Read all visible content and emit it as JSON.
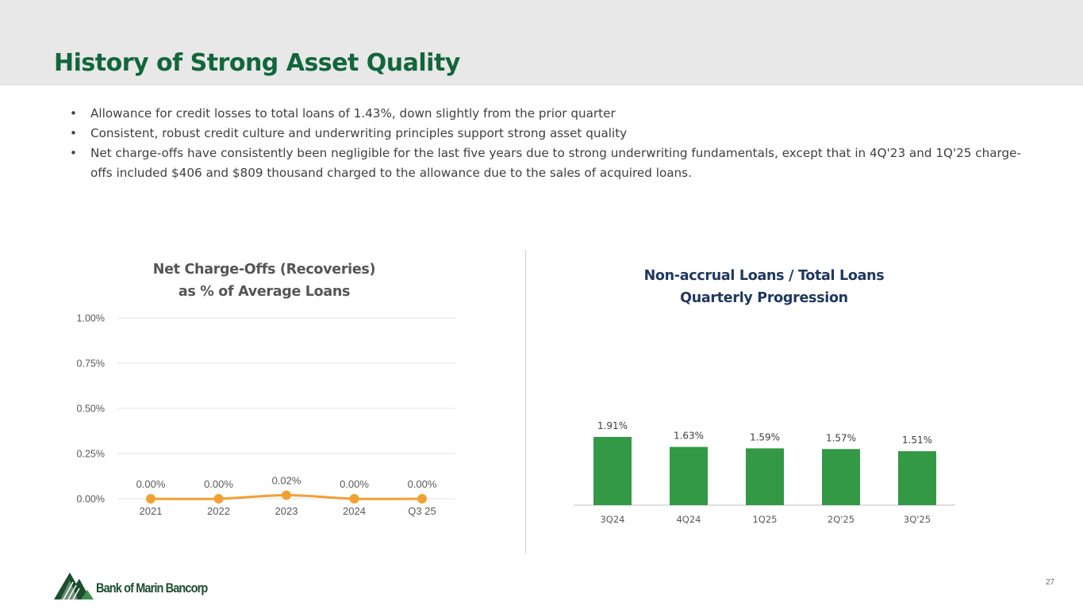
{
  "header": {
    "title": "History of Strong Asset Quality"
  },
  "bullets": [
    "Allowance for credit losses to total loans of 1.43%, down slightly from the prior quarter",
    "Consistent, robust credit culture and underwriting principles support strong asset quality",
    "Net charge-offs have consistently been negligible for the last five years due to strong underwriting fundamentals, except that in 4Q'23 and 1Q'25 charge-offs included $406 and $809 thousand charged to the allowance due to the sales of acquired loans."
  ],
  "colors": {
    "title_green": "#12663a",
    "bar_green": "#339944",
    "line_orange": "#f2a033",
    "nal_title_navy": "#1f3860"
  },
  "chart_data": [
    {
      "type": "line",
      "title_lines": [
        "Net Charge-Offs (Recoveries)",
        "as % of Average Loans"
      ],
      "x": [
        "2021",
        "2022",
        "2023",
        "2024",
        "Q3 25"
      ],
      "values": [
        0.0,
        0.0,
        0.02,
        0.0,
        0.0
      ],
      "data_labels": [
        "0.00%",
        "0.00%",
        "0.02%",
        "0.00%",
        "0.00%"
      ],
      "y_ticks": [
        "0.00%",
        "0.25%",
        "0.50%",
        "0.75%",
        "1.00%"
      ],
      "ylim": [
        0,
        1.0
      ],
      "grid": true,
      "smooth": true
    },
    {
      "type": "bar",
      "title_lines": [
        "Non-accrual Loans / Total Loans",
        "Quarterly Progression"
      ],
      "categories": [
        "3Q24",
        "4Q24",
        "1Q25",
        "2Q'25",
        "3Q'25"
      ],
      "values": [
        1.91,
        1.63,
        1.59,
        1.57,
        1.51
      ],
      "data_labels": [
        "1.91%",
        "1.63%",
        "1.59%",
        "1.57%",
        "1.51%"
      ],
      "grid": false
    }
  ],
  "footer": {
    "logo_text": "Bank of Marin Bancorp",
    "logo_icon": "mountain-trees-icon",
    "page_number": "27"
  }
}
